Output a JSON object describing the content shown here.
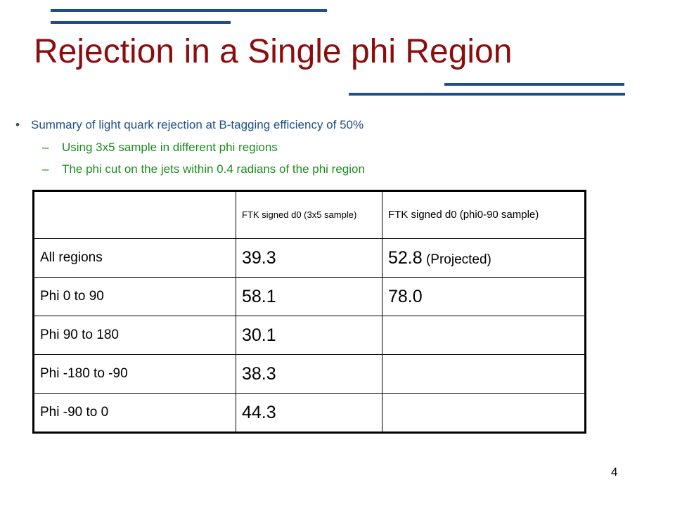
{
  "title": "Rejection in a Single phi Region",
  "colors": {
    "title": "#8b0d0d",
    "accent_rules": "#1f4e8c",
    "bullet_text": "#1f4e8c",
    "sub_bullet_text": "#1e8b1e"
  },
  "bullet": {
    "marker": "•",
    "text": "Summary of light quark rejection at B-tagging efficiency of 50%"
  },
  "sub_bullets": [
    {
      "marker": "–",
      "text": "Using 3x5 sample in different phi regions"
    },
    {
      "marker": "–",
      "text": "The phi cut on the jets within 0.4 radians of the phi region"
    }
  ],
  "table": {
    "headers": [
      "",
      "FTK signed d0 (3x5 sample)",
      "FTK signed d0 (phi0-90 sample)"
    ],
    "rows": [
      {
        "label": "All regions",
        "col1": "39.3",
        "col2": "52.8",
        "col2_note": " (Projected)"
      },
      {
        "label": "Phi 0 to 90",
        "col1": "58.1",
        "col2": "78.0",
        "col2_note": ""
      },
      {
        "label": "Phi 90 to 180",
        "col1": "30.1",
        "col2": "",
        "col2_note": ""
      },
      {
        "label": "Phi -180 to -90",
        "col1": "38.3",
        "col2": "",
        "col2_note": ""
      },
      {
        "label": "Phi -90 to 0",
        "col1": "44.3",
        "col2": "",
        "col2_note": ""
      }
    ]
  },
  "page_number": "4"
}
